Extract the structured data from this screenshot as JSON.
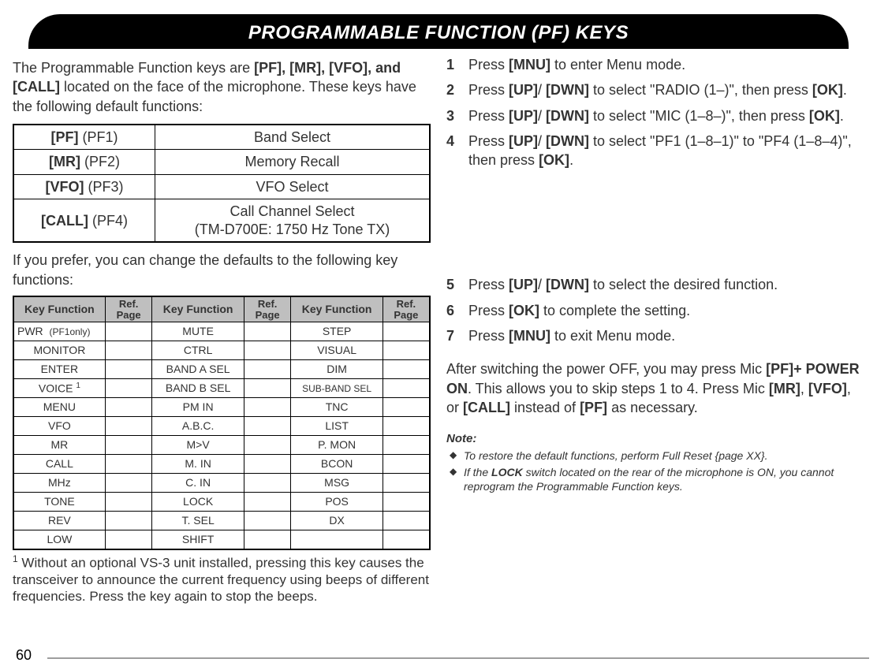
{
  "header": {
    "title": "PROGRAMMABLE FUNCTION (PF) KEYS"
  },
  "intro": {
    "p1_a": "The Programmable Function keys are ",
    "p1_keys": "[PF], [MR], [VFO], and [CALL]",
    "p1_b": " located on the face of the microphone.  These keys have the following default functions:"
  },
  "defaults": {
    "rows": [
      {
        "key_b": "[PF]",
        "key_s": " (PF1)",
        "func": "Band Select"
      },
      {
        "key_b": "[MR]",
        "key_s": " (PF2)",
        "func": "Memory Recall"
      },
      {
        "key_b": "[VFO]",
        "key_s": " (PF3)",
        "func": "VFO Select"
      },
      {
        "key_b": "[CALL]",
        "key_s": " (PF4)",
        "func": "Call Channel Select\n(TM-D700E: 1750 Hz Tone TX)"
      }
    ]
  },
  "subhead": "If you prefer, you can change the defaults to the following key functions:",
  "funcs_header": {
    "kf": "Key   Function",
    "rp1": "Ref.",
    "rp2": "Page"
  },
  "funcs": {
    "col1": [
      "PWR  (PF1only)",
      "MONITOR",
      "ENTER",
      "VOICE ¹",
      "MENU",
      "VFO",
      "MR",
      "CALL",
      "MHz",
      "TONE",
      "REV",
      "LOW"
    ],
    "col2": [
      "MUTE",
      "CTRL",
      "BAND A SEL",
      "BAND B SEL",
      "PM IN",
      "A.B.C.",
      "M>V",
      "M. IN",
      "C. IN",
      "LOCK",
      "T. SEL",
      "SHIFT"
    ],
    "col3": [
      "STEP",
      "VISUAL",
      "DIM",
      "SUB-BAND SEL",
      "TNC",
      "LIST",
      "P. MON",
      "BCON",
      "MSG",
      "POS",
      "DX",
      ""
    ]
  },
  "footnote": {
    "sup": "1",
    "text": " Without an optional VS-3 unit installed, pressing this key causes the transceiver to announce the current frequency using beeps of different frequencies.  Press the key again to stop the beeps."
  },
  "steps_a": [
    {
      "pre": "Press ",
      "b1": "[MNU]",
      "post": " to enter Menu mode."
    },
    {
      "pre": "Press ",
      "b1": "[UP]",
      "mid1": "/ ",
      "b2": "[DWN]",
      "mid2": " to select \"RADIO (1–)\", then press ",
      "b3": "[OK]",
      "post": "."
    },
    {
      "pre": "Press ",
      "b1": "[UP]",
      "mid1": "/ ",
      "b2": "[DWN]",
      "mid2": " to select \"MIC (1–8–)\", then press ",
      "b3": "[OK]",
      "post": "."
    },
    {
      "pre": "Press ",
      "b1": "[UP]",
      "mid1": "/ ",
      "b2": "[DWN]",
      "mid2": " to select \"PF1 (1–8–1)\" to \"PF4 (1–8–4)\", then press ",
      "b3": "[OK]",
      "post": "."
    }
  ],
  "steps_b": [
    {
      "pre": "Press ",
      "b1": "[UP]",
      "mid1": "/ ",
      "b2": "[DWN]",
      "post": " to select the desired function."
    },
    {
      "pre": "Press ",
      "b1": "[OK]",
      "post": " to complete the setting."
    },
    {
      "pre": "Press ",
      "b1": "[MNU]",
      "post": " to exit Menu mode."
    }
  ],
  "after": {
    "a1": "After switching the power OFF, you may press Mic ",
    "b1": "[PF]+ POWER ON",
    "a2": ".  This allows you to skip steps 1 to 4.  Press Mic ",
    "b2": "[MR]",
    "a3": ", ",
    "b3": "[VFO]",
    "a4": ", or ",
    "b4": "[CALL]",
    "a5": " instead of ",
    "b5": "[PF]",
    "a6": " as necessary."
  },
  "note_label": "Note:",
  "notes": [
    {
      "t1": "To restore the default functions, perform Full Reset {page XX}."
    },
    {
      "t1": "If the ",
      "b": "LOCK",
      "t2": " switch located on the rear of the microphone is ON, you cannot reprogram the Programmable Function keys."
    }
  ],
  "page_num": "60",
  "colors": {
    "header_bg": "#000000",
    "header_fg": "#ffffff",
    "th_bg": "#bfbfbf",
    "rule": "#9e9e9e"
  }
}
